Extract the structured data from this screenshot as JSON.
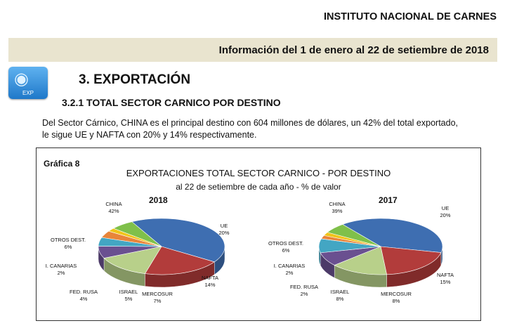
{
  "header": {
    "organization": "INSTITUTO NACIONAL DE CARNES",
    "period": "Información del 1 de enero al 22 de setiembre de 2018"
  },
  "section": {
    "icon_label": "EXP",
    "title": "3. EXPORTACIÓN",
    "subtitle": "3.2.1 TOTAL SECTOR CARNICO POR DESTINO",
    "paragraph": "Del Sector Cárnico, CHINA es el principal destino con 604 millones de dólares, un 42% del total exportado, le sigue UE y NAFTA con 20% y 14% respectivamente."
  },
  "colors": {
    "CHINA": "#3e6eb1",
    "UE": "#b23c3b",
    "NAFTA": "#b8d08a",
    "MERCOSUR": "#6a5090",
    "ISRAEL": "#43a6c3",
    "FED. RUSA": "#e8853a",
    "I. CANARIAS": "#f0c419",
    "OTROS DEST.": "#7fc04a"
  },
  "chart_data": {
    "type": "pie",
    "figure_label": "Gráfica 8",
    "title": "EXPORTACIONES TOTAL SECTOR CARNICO - POR DESTINO",
    "subtitle": "al 22 de setiembre de cada año -  % de valor",
    "pies": [
      {
        "year": "2018",
        "slices": [
          {
            "name": "CHINA",
            "value": 42,
            "label": "42%"
          },
          {
            "name": "UE",
            "value": 20,
            "label": "20%"
          },
          {
            "name": "NAFTA",
            "value": 14,
            "label": "14%"
          },
          {
            "name": "MERCOSUR",
            "value": 7,
            "label": "7%"
          },
          {
            "name": "ISRAEL",
            "value": 5,
            "label": "5%"
          },
          {
            "name": "FED. RUSA",
            "value": 4,
            "label": "4%"
          },
          {
            "name": "I. CANARIAS",
            "value": 2,
            "label": "2%"
          },
          {
            "name": "OTROS DEST.",
            "value": 6,
            "label": "6%"
          }
        ]
      },
      {
        "year": "2017",
        "slices": [
          {
            "name": "CHINA",
            "value": 39,
            "label": "39%"
          },
          {
            "name": "UE",
            "value": 20,
            "label": "20%"
          },
          {
            "name": "NAFTA",
            "value": 15,
            "label": "15%"
          },
          {
            "name": "MERCOSUR",
            "value": 8,
            "label": "8%"
          },
          {
            "name": "ISRAEL",
            "value": 8,
            "label": "8%"
          },
          {
            "name": "FED. RUSA",
            "value": 2,
            "label": "2%"
          },
          {
            "name": "I. CANARIAS",
            "value": 2,
            "label": "2%"
          },
          {
            "name": "OTROS DEST.",
            "value": 6,
            "label": "6%"
          }
        ]
      }
    ]
  }
}
